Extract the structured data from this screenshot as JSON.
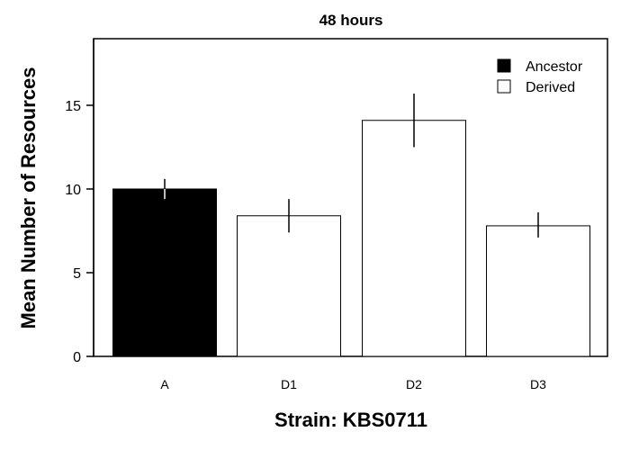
{
  "chart_data": {
    "type": "bar",
    "title": "48 hours",
    "xlabel": "Strain: KBS0711",
    "ylabel": "Mean Number of Resources",
    "categories": [
      "A",
      "D1",
      "D2",
      "D3"
    ],
    "values": [
      10.0,
      8.4,
      14.1,
      7.8
    ],
    "error_low": [
      9.4,
      7.4,
      12.5,
      7.1
    ],
    "error_high": [
      10.6,
      9.4,
      15.7,
      8.6
    ],
    "bar_groups": [
      "Ancestor",
      "Derived",
      "Derived",
      "Derived"
    ],
    "ylim": [
      0,
      19
    ],
    "yticks": [
      0,
      5,
      10,
      15
    ],
    "grid": false,
    "legend": {
      "position": "top-right",
      "entries": [
        {
          "label": "Ancestor",
          "color": "#000000"
        },
        {
          "label": "Derived",
          "color": "#ffffff"
        }
      ]
    }
  }
}
